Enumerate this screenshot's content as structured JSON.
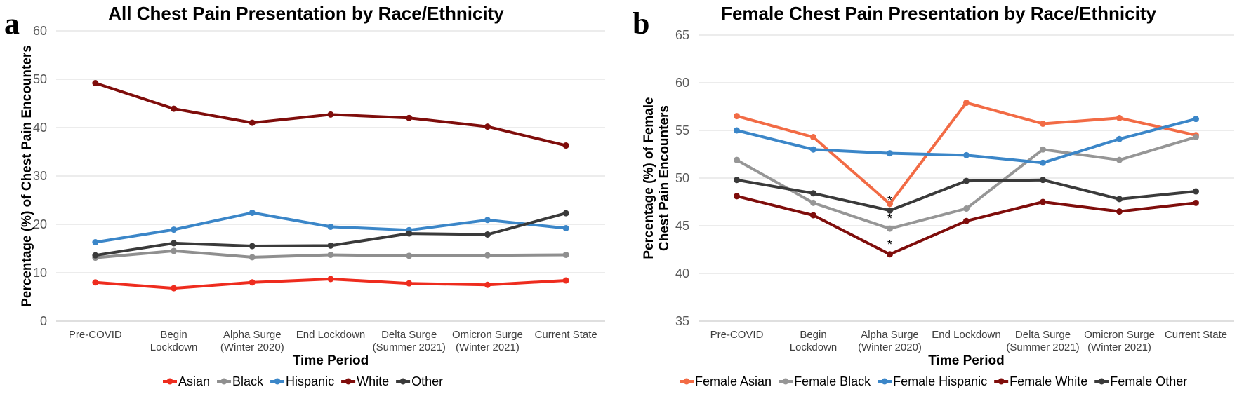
{
  "chart_data": [
    {
      "type": "line",
      "panel_label": "a",
      "title": "All Chest Pain Presentation by Race/Ethnicity",
      "xlabel": "Time Period",
      "ylabel": "Percentage (%) of Chest Pain Encounters",
      "ylim": [
        0,
        60
      ],
      "yticks": [
        0,
        10,
        20,
        30,
        40,
        50,
        60
      ],
      "grid": true,
      "legend_position": "bottom",
      "categories": [
        [
          "Pre-COVID"
        ],
        [
          "Begin",
          "Lockdown"
        ],
        [
          "Alpha Surge",
          "(Winter 2020)"
        ],
        [
          "End Lockdown"
        ],
        [
          "Delta Surge",
          "(Summer 2021)"
        ],
        [
          "Omicron Surge",
          "(Winter 2021)"
        ],
        [
          "Current State"
        ]
      ],
      "series": [
        {
          "name": "Asian",
          "color": "#ee2c1e",
          "values": [
            8.0,
            6.8,
            8.0,
            8.7,
            7.8,
            7.5,
            8.4
          ]
        },
        {
          "name": "Black",
          "color": "#8f8f8f",
          "values": [
            13.1,
            14.5,
            13.2,
            13.7,
            13.5,
            13.6,
            13.7
          ]
        },
        {
          "name": "Hispanic",
          "color": "#3b86c8",
          "values": [
            16.3,
            18.9,
            22.4,
            19.5,
            18.8,
            20.9,
            19.2
          ]
        },
        {
          "name": "White",
          "color": "#7f0d0b",
          "values": [
            49.2,
            43.9,
            41.0,
            42.7,
            42.0,
            40.2,
            36.3
          ]
        },
        {
          "name": "Other",
          "color": "#3a3a3a",
          "values": [
            13.6,
            16.1,
            15.5,
            15.6,
            18.1,
            17.9,
            22.3
          ]
        }
      ],
      "annotations": []
    },
    {
      "type": "line",
      "panel_label": "b",
      "title": "Female Chest Pain Presentation by Race/Ethnicity",
      "xlabel": "Time Period",
      "ylabel": [
        "Percentage (%) of Female",
        "Chest Pain Encounters"
      ],
      "ylim": [
        35,
        65
      ],
      "yticks": [
        35,
        40,
        45,
        50,
        55,
        60,
        65
      ],
      "grid": true,
      "legend_position": "bottom",
      "categories": [
        [
          "Pre-COVID"
        ],
        [
          "Begin",
          "Lockdown"
        ],
        [
          "Alpha Surge",
          "(Winter 2020)"
        ],
        [
          "End Lockdown"
        ],
        [
          "Delta Surge",
          "(Summer 2021)"
        ],
        [
          "Omicron Surge",
          "(Winter 2021)"
        ],
        [
          "Current State"
        ]
      ],
      "series": [
        {
          "name": "Female Asian",
          "color": "#f26b45",
          "values": [
            56.5,
            54.3,
            47.3,
            57.9,
            55.7,
            56.3,
            54.5
          ]
        },
        {
          "name": "Female Black",
          "color": "#969696",
          "values": [
            51.9,
            47.4,
            44.7,
            46.8,
            53.0,
            51.9,
            54.3
          ]
        },
        {
          "name": "Female Hispanic",
          "color": "#3b86c8",
          "values": [
            55.0,
            53.0,
            52.6,
            52.4,
            51.6,
            54.1,
            56.2
          ]
        },
        {
          "name": "Female White",
          "color": "#7f0d0b",
          "values": [
            48.1,
            46.1,
            42.0,
            45.5,
            47.5,
            46.5,
            47.4
          ]
        },
        {
          "name": "Female Other",
          "color": "#3a3a3a",
          "values": [
            49.8,
            48.4,
            46.6,
            49.7,
            49.8,
            47.8,
            48.6
          ]
        }
      ],
      "annotations": [
        {
          "text": "*",
          "x_index": 2,
          "value": 46.6
        },
        {
          "text": "*",
          "x_index": 2,
          "value": 44.7
        },
        {
          "text": "*",
          "x_index": 2,
          "value": 42.0
        }
      ]
    }
  ]
}
